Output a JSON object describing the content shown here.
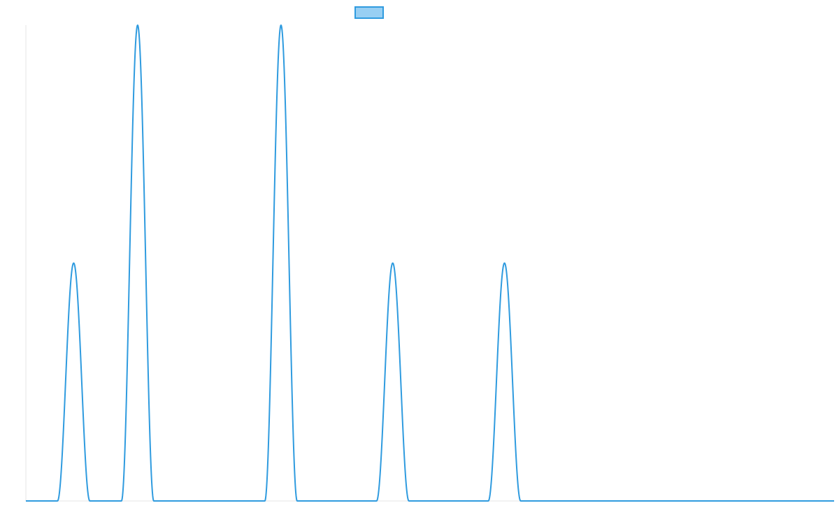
{
  "colors": {
    "line": "#2F9BDF",
    "legend_fill": "#98CFF3",
    "axis": "#E6E6E6",
    "background": "#FFFFFF"
  },
  "chart_data": {
    "type": "line",
    "title": "",
    "xlabel": "",
    "ylabel": "",
    "grid": false,
    "legend": {
      "placement": "top-center",
      "entries": [
        {
          "label": "",
          "color": "#2F9BDF"
        }
      ]
    },
    "xlim": [
      0,
      1150
    ],
    "ylim": [
      0,
      1
    ],
    "series": [
      {
        "peaks": [
          {
            "center": 68,
            "half_width": 23,
            "height": 0.5
          },
          {
            "center": 159,
            "half_width": 23,
            "height": 1.0
          },
          {
            "center": 363,
            "half_width": 23,
            "height": 1.0
          },
          {
            "center": 522,
            "half_width": 23,
            "height": 0.5
          },
          {
            "center": 681,
            "half_width": 23,
            "height": 0.5
          }
        ]
      }
    ]
  }
}
